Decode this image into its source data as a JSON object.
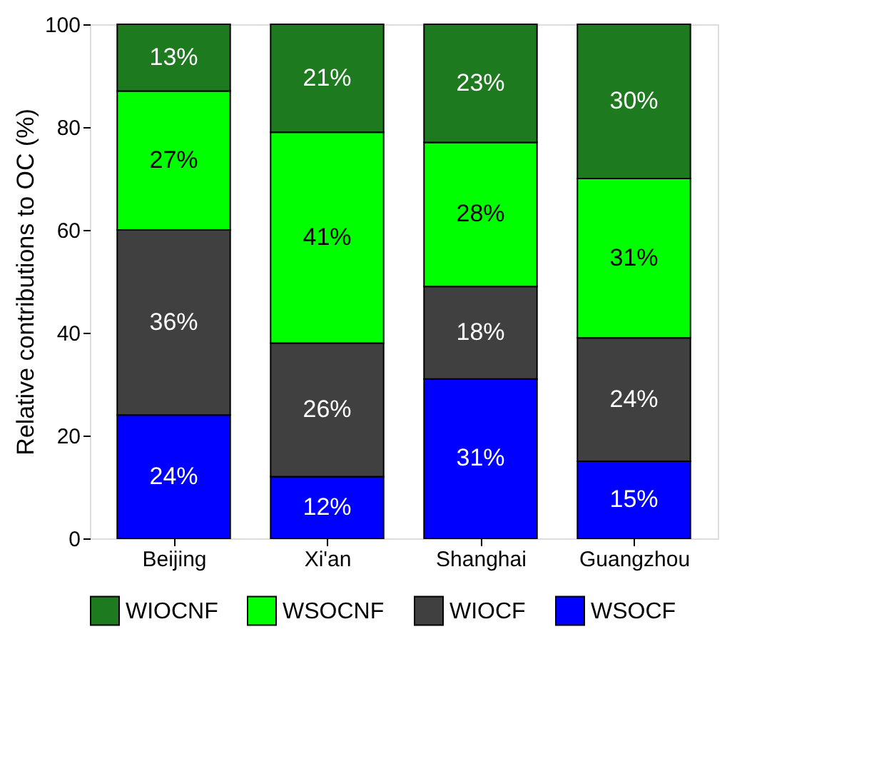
{
  "chart_data": {
    "type": "bar",
    "stacked": true,
    "categories": [
      "Beijing",
      "Xi'an",
      "Shanghai",
      "Guangzhou"
    ],
    "ylabel": "Relative contributions to OC (%)",
    "ylim": [
      0,
      100
    ],
    "yticks": [
      0,
      20,
      40,
      60,
      80,
      100
    ],
    "legend": "bottom",
    "series": [
      {
        "name": "WSOCF",
        "color": "#0000ff",
        "values": [
          24,
          12,
          31,
          15
        ],
        "value_labels": [
          "24%",
          "12%",
          "31%",
          "15%"
        ]
      },
      {
        "name": "WIOCF",
        "color": "#404040",
        "values": [
          36,
          26,
          18,
          24
        ],
        "value_labels": [
          "36%",
          "26%",
          "18%",
          "24%"
        ]
      },
      {
        "name": "WSOCNF",
        "color": "#00ff00",
        "values": [
          27,
          41,
          28,
          31
        ],
        "value_labels": [
          "27%",
          "41%",
          "28%",
          "31%"
        ]
      },
      {
        "name": "WIOCNF",
        "color": "#1e7a1e",
        "values": [
          13,
          21,
          23,
          30
        ],
        "value_labels": [
          "13%",
          "21%",
          "23%",
          "30%"
        ]
      }
    ]
  }
}
